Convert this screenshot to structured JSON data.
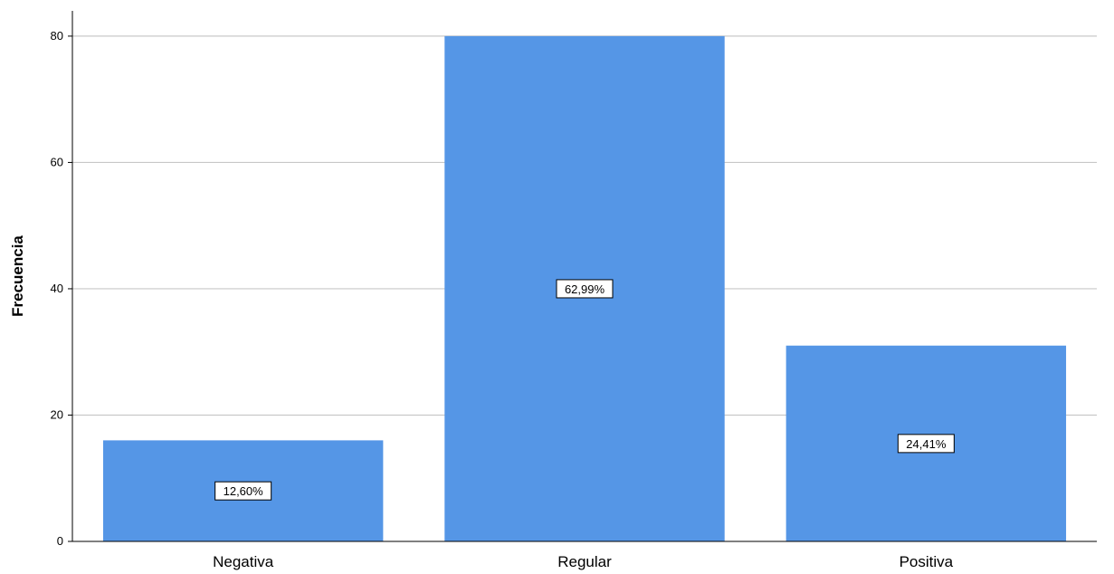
{
  "chart_data": {
    "type": "bar",
    "title": "",
    "xlabel": "",
    "ylabel": "Frecuencia",
    "categories": [
      "Negativa",
      "Regular",
      "Positiva"
    ],
    "values": [
      16,
      80,
      31
    ],
    "data_labels": [
      "12,60%",
      "62,99%",
      "24,41%"
    ],
    "ylim": [
      0,
      84
    ],
    "yticks": [
      0,
      20,
      40,
      60,
      80
    ],
    "grid": true,
    "bar_color": "#5596e6",
    "legend": "none"
  }
}
